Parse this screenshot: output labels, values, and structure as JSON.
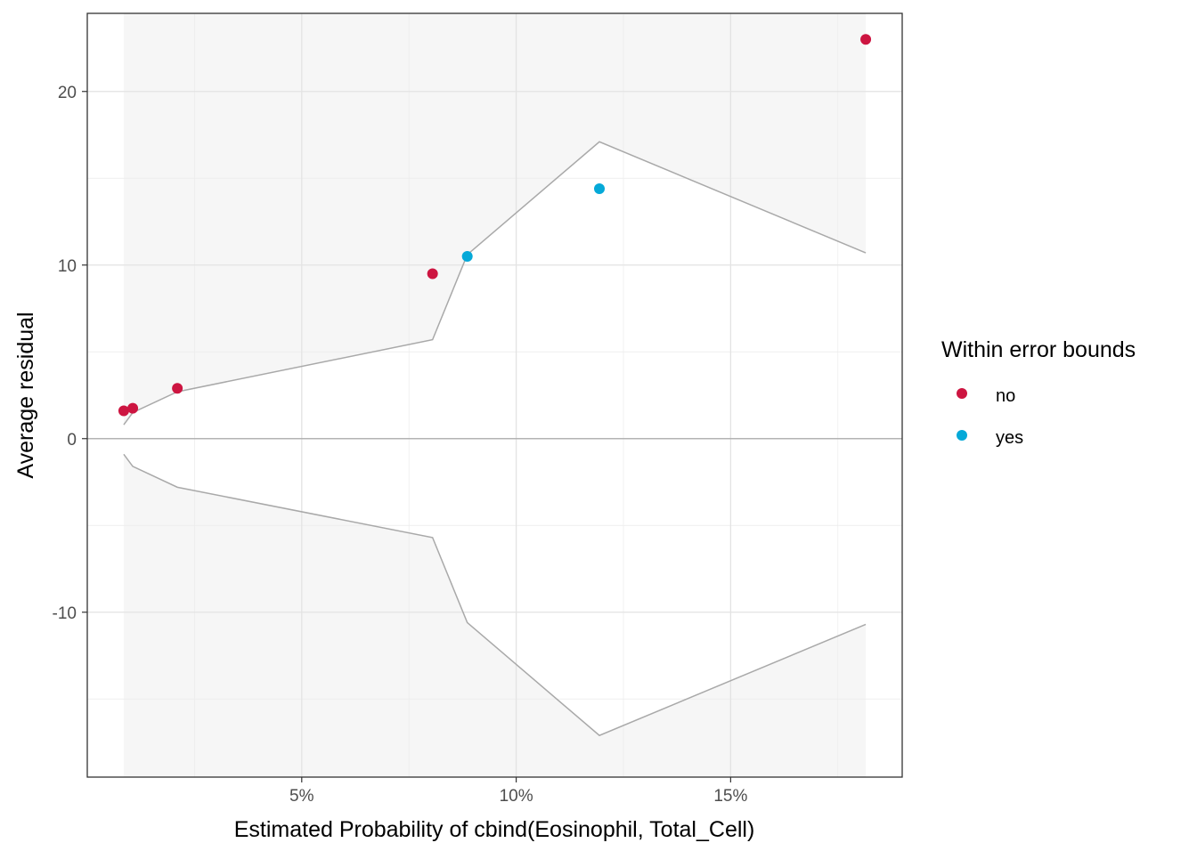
{
  "chart_data": {
    "type": "scatter",
    "title": "",
    "xlabel": "Estimated Probability of cbind(Eosinophil, Total_Cell)",
    "ylabel": "Average residual",
    "xlim": [
      0.0,
      0.19
    ],
    "ylim": [
      -19.5,
      24.5
    ],
    "x_ticks": [
      {
        "value": 0.05,
        "label": "5%"
      },
      {
        "value": 0.1,
        "label": "10%"
      },
      {
        "value": 0.15,
        "label": "15%"
      }
    ],
    "y_ticks": [
      {
        "value": -10,
        "label": "-10"
      },
      {
        "value": 0,
        "label": "0"
      },
      {
        "value": 10,
        "label": "10"
      },
      {
        "value": 20,
        "label": "20"
      }
    ],
    "grid": true,
    "zero_line": true,
    "error_bounds": {
      "x": [
        0.0085,
        0.0106,
        0.021,
        0.0805,
        0.0886,
        0.1194,
        0.1815
      ],
      "upper": [
        0.8,
        1.5,
        2.7,
        5.7,
        10.6,
        17.1,
        10.7
      ],
      "lower": [
        -0.9,
        -1.6,
        -2.8,
        -5.7,
        -10.6,
        -17.1,
        -10.7
      ]
    },
    "legend": {
      "title": "Within error bounds",
      "position": "right",
      "entries": [
        {
          "label": "no",
          "color": "#CD1541"
        },
        {
          "label": "yes",
          "color": "#05A9D8"
        }
      ]
    },
    "series": [
      {
        "name": "no",
        "color": "#CD1541",
        "points": [
          {
            "x": 0.0085,
            "y": 1.6
          },
          {
            "x": 0.0106,
            "y": 1.75
          },
          {
            "x": 0.021,
            "y": 2.9
          },
          {
            "x": 0.0805,
            "y": 9.5
          },
          {
            "x": 0.1815,
            "y": 23.0
          }
        ]
      },
      {
        "name": "yes",
        "color": "#05A9D8",
        "points": [
          {
            "x": 0.0886,
            "y": 10.5
          },
          {
            "x": 0.1194,
            "y": 14.4
          }
        ]
      }
    ]
  }
}
